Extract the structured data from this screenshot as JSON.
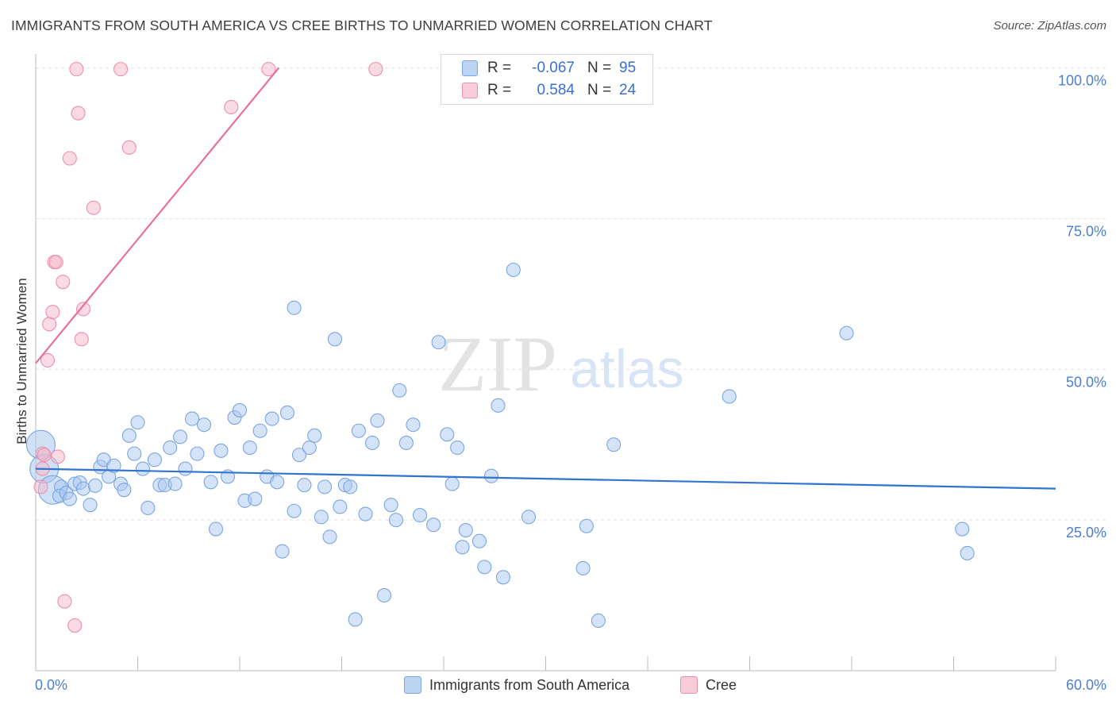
{
  "title": "IMMIGRANTS FROM SOUTH AMERICA VS CREE BIRTHS TO UNMARRIED WOMEN CORRELATION CHART",
  "source": "Source: ZipAtlas.com",
  "watermark": {
    "zip": "ZIP",
    "atlas": "atlas"
  },
  "legend": {
    "rows": [
      {
        "r_label": "R =",
        "r_value": "-0.067",
        "n_label": "N =",
        "n_value": "95"
      },
      {
        "r_label": "R =",
        "r_value": "0.584",
        "n_label": "N =",
        "n_value": "24"
      }
    ]
  },
  "bottom_legend": [
    "Immigrants from South America",
    "Cree"
  ],
  "chart_data": {
    "type": "scatter",
    "title": "IMMIGRANTS FROM SOUTH AMERICA VS CREE BIRTHS TO UNMARRIED WOMEN CORRELATION CHART",
    "xlabel": "",
    "ylabel": "Births to Unmarried Women",
    "xlim": [
      0,
      60
    ],
    "ylim": [
      0,
      101
    ],
    "x_tick_labels": [
      "0.0%",
      "60.0%"
    ],
    "y_ticks": [
      25,
      50,
      75,
      100
    ],
    "y_tick_labels": [
      "25.0%",
      "50.0%",
      "75.0%",
      "100.0%"
    ],
    "grid": true,
    "legend_position": "top-center",
    "colors": {
      "blue": "#a9c8ef",
      "blue_edge": "#7aa6e0",
      "blue_line": "#2f74d0",
      "pink": "#f5b7c9",
      "pink_edge": "#ec8fac",
      "pink_line": "#e8709a"
    },
    "series": [
      {
        "name": "Immigrants from South America",
        "color": "blue",
        "trend": {
          "x": [
            0,
            60
          ],
          "y": [
            33.5,
            30.2
          ]
        },
        "points": [
          {
            "x": 0.3,
            "y": 37.5,
            "big": true
          },
          {
            "x": 0.5,
            "y": 33.5,
            "big": true
          },
          {
            "x": 1.0,
            "y": 30.0,
            "big": true
          },
          {
            "x": 1.5,
            "y": 30.5
          },
          {
            "x": 1.4,
            "y": 29.0
          },
          {
            "x": 1.8,
            "y": 29.5
          },
          {
            "x": 2.0,
            "y": 28.5
          },
          {
            "x": 2.3,
            "y": 31.0
          },
          {
            "x": 2.6,
            "y": 31.2
          },
          {
            "x": 2.8,
            "y": 30.2
          },
          {
            "x": 3.2,
            "y": 27.5
          },
          {
            "x": 3.5,
            "y": 30.7
          },
          {
            "x": 3.8,
            "y": 33.8
          },
          {
            "x": 4.0,
            "y": 35.0
          },
          {
            "x": 4.3,
            "y": 32.2
          },
          {
            "x": 4.6,
            "y": 34.0
          },
          {
            "x": 5.0,
            "y": 31.0
          },
          {
            "x": 5.2,
            "y": 30.0
          },
          {
            "x": 5.5,
            "y": 39.0
          },
          {
            "x": 5.8,
            "y": 36.0
          },
          {
            "x": 6.0,
            "y": 41.2
          },
          {
            "x": 6.3,
            "y": 33.5
          },
          {
            "x": 6.6,
            "y": 27.0
          },
          {
            "x": 7.0,
            "y": 35.0
          },
          {
            "x": 7.3,
            "y": 30.8
          },
          {
            "x": 7.6,
            "y": 30.8
          },
          {
            "x": 7.9,
            "y": 37.0
          },
          {
            "x": 8.2,
            "y": 31.0
          },
          {
            "x": 8.5,
            "y": 38.8
          },
          {
            "x": 8.8,
            "y": 33.5
          },
          {
            "x": 9.2,
            "y": 41.8
          },
          {
            "x": 9.5,
            "y": 36.0
          },
          {
            "x": 9.9,
            "y": 40.8
          },
          {
            "x": 10.3,
            "y": 31.3
          },
          {
            "x": 10.6,
            "y": 23.5
          },
          {
            "x": 10.9,
            "y": 36.5
          },
          {
            "x": 11.3,
            "y": 32.2
          },
          {
            "x": 11.7,
            "y": 42.0
          },
          {
            "x": 12.0,
            "y": 43.2
          },
          {
            "x": 12.3,
            "y": 28.2
          },
          {
            "x": 12.6,
            "y": 37.0
          },
          {
            "x": 12.9,
            "y": 28.5
          },
          {
            "x": 13.2,
            "y": 39.8
          },
          {
            "x": 13.6,
            "y": 32.2
          },
          {
            "x": 13.9,
            "y": 41.8
          },
          {
            "x": 14.2,
            "y": 31.3
          },
          {
            "x": 14.5,
            "y": 19.8
          },
          {
            "x": 14.8,
            "y": 42.8
          },
          {
            "x": 15.2,
            "y": 26.5
          },
          {
            "x": 15.5,
            "y": 35.8
          },
          {
            "x": 15.2,
            "y": 60.2
          },
          {
            "x": 15.8,
            "y": 30.8
          },
          {
            "x": 16.1,
            "y": 37.0
          },
          {
            "x": 16.4,
            "y": 39.0
          },
          {
            "x": 16.8,
            "y": 25.5
          },
          {
            "x": 17.0,
            "y": 30.5
          },
          {
            "x": 17.3,
            "y": 22.2
          },
          {
            "x": 17.6,
            "y": 55.0
          },
          {
            "x": 17.9,
            "y": 27.2
          },
          {
            "x": 18.2,
            "y": 30.8
          },
          {
            "x": 18.5,
            "y": 30.5
          },
          {
            "x": 18.8,
            "y": 8.5
          },
          {
            "x": 19.0,
            "y": 39.8
          },
          {
            "x": 19.4,
            "y": 26.0
          },
          {
            "x": 19.8,
            "y": 37.8
          },
          {
            "x": 20.1,
            "y": 41.5
          },
          {
            "x": 20.5,
            "y": 12.5
          },
          {
            "x": 20.9,
            "y": 27.5
          },
          {
            "x": 21.2,
            "y": 25.0
          },
          {
            "x": 21.4,
            "y": 46.5
          },
          {
            "x": 21.8,
            "y": 37.8
          },
          {
            "x": 22.2,
            "y": 40.8
          },
          {
            "x": 22.6,
            "y": 25.8
          },
          {
            "x": 23.4,
            "y": 24.2
          },
          {
            "x": 23.7,
            "y": 54.5
          },
          {
            "x": 24.2,
            "y": 39.2
          },
          {
            "x": 24.5,
            "y": 31.0
          },
          {
            "x": 24.8,
            "y": 37.0
          },
          {
            "x": 25.1,
            "y": 20.5
          },
          {
            "x": 25.3,
            "y": 23.3
          },
          {
            "x": 26.1,
            "y": 21.5
          },
          {
            "x": 26.4,
            "y": 17.2
          },
          {
            "x": 26.8,
            "y": 32.3
          },
          {
            "x": 27.2,
            "y": 44.0
          },
          {
            "x": 27.5,
            "y": 15.5
          },
          {
            "x": 28.1,
            "y": 66.5
          },
          {
            "x": 29.0,
            "y": 25.5
          },
          {
            "x": 32.2,
            "y": 17.0
          },
          {
            "x": 32.4,
            "y": 24.0
          },
          {
            "x": 33.1,
            "y": 8.3
          },
          {
            "x": 34.0,
            "y": 37.5
          },
          {
            "x": 40.8,
            "y": 45.5
          },
          {
            "x": 47.7,
            "y": 56.0
          },
          {
            "x": 54.5,
            "y": 23.5
          },
          {
            "x": 54.8,
            "y": 19.5
          }
        ]
      },
      {
        "name": "Cree",
        "color": "pink",
        "trend": {
          "x": [
            0,
            14.3
          ],
          "y": [
            51.0,
            100.0
          ]
        },
        "points": [
          {
            "x": 0.3,
            "y": 30.5
          },
          {
            "x": 0.4,
            "y": 33.5
          },
          {
            "x": 0.4,
            "y": 36.0
          },
          {
            "x": 0.5,
            "y": 35.8
          },
          {
            "x": 0.7,
            "y": 51.5
          },
          {
            "x": 0.8,
            "y": 57.5
          },
          {
            "x": 1.0,
            "y": 59.5
          },
          {
            "x": 1.1,
            "y": 67.8
          },
          {
            "x": 1.2,
            "y": 67.8
          },
          {
            "x": 1.3,
            "y": 35.5
          },
          {
            "x": 1.6,
            "y": 64.5
          },
          {
            "x": 1.7,
            "y": 11.5
          },
          {
            "x": 2.0,
            "y": 85.0
          },
          {
            "x": 2.3,
            "y": 7.5
          },
          {
            "x": 2.4,
            "y": 99.8
          },
          {
            "x": 2.5,
            "y": 92.5
          },
          {
            "x": 2.7,
            "y": 55.0
          },
          {
            "x": 2.8,
            "y": 60.0
          },
          {
            "x": 3.4,
            "y": 76.8
          },
          {
            "x": 5.0,
            "y": 99.8
          },
          {
            "x": 5.5,
            "y": 86.8
          },
          {
            "x": 11.5,
            "y": 93.5
          },
          {
            "x": 13.7,
            "y": 99.8
          },
          {
            "x": 20.0,
            "y": 99.8
          }
        ]
      }
    ]
  }
}
